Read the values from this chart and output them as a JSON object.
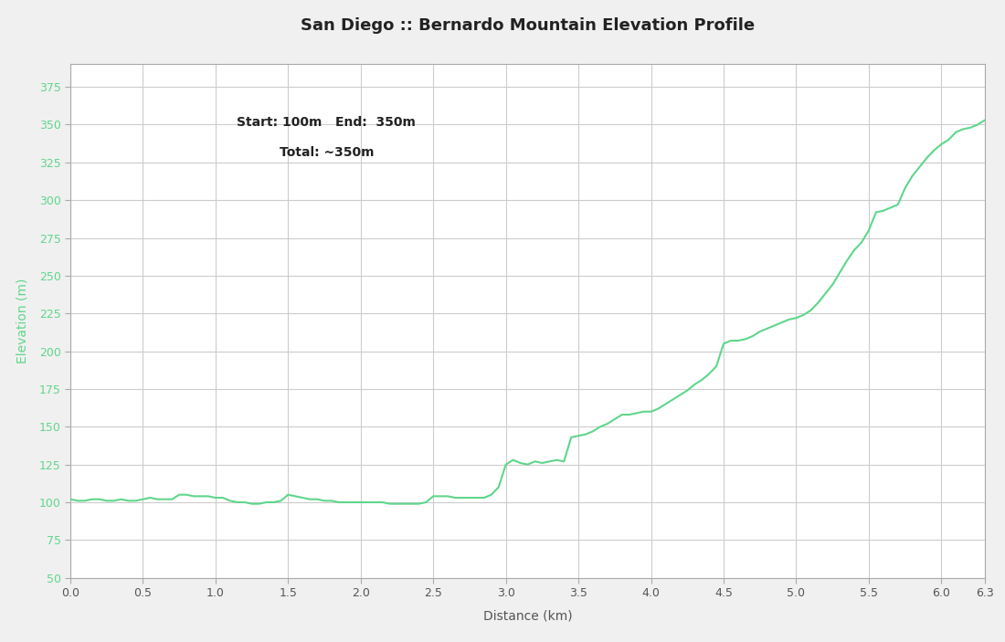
{
  "title": "San Diego :: Bernardo Mountain Elevation Profile",
  "subtitle_line1": "Start: 100m   End:  350m",
  "subtitle_line2": "Total: ~350m",
  "xlabel": "Distance (km)",
  "ylabel": "Elevation (m)",
  "xlim": [
    0.0,
    6.3
  ],
  "ylim": [
    50,
    390
  ],
  "xticks": [
    0.0,
    0.5,
    1.0,
    1.5,
    2.0,
    2.5,
    3.0,
    3.5,
    4.0,
    4.5,
    5.0,
    5.5,
    6.0,
    6.3
  ],
  "yticks": [
    50,
    75,
    100,
    125,
    150,
    175,
    200,
    225,
    250,
    275,
    300,
    325,
    350,
    375
  ],
  "line_color": "#5fd68c",
  "bg_color": "#f0f0f0",
  "plot_bg_color": "#ffffff",
  "grid_color": "#cccccc",
  "title_color": "#222222",
  "ylabel_color": "#5fd68c",
  "xlabel_color": "#555555",
  "tick_color": "#5fd68c",
  "title_fontsize": 13,
  "subtitle_fontsize": 10,
  "axis_label_fontsize": 10,
  "tick_fontsize": 9,
  "line_width": 1.5,
  "elevation_profile": [
    [
      0.0,
      102
    ],
    [
      0.05,
      101
    ],
    [
      0.1,
      101
    ],
    [
      0.15,
      102
    ],
    [
      0.2,
      102
    ],
    [
      0.25,
      101
    ],
    [
      0.3,
      101
    ],
    [
      0.35,
      102
    ],
    [
      0.4,
      101
    ],
    [
      0.45,
      101
    ],
    [
      0.5,
      102
    ],
    [
      0.55,
      103
    ],
    [
      0.6,
      102
    ],
    [
      0.65,
      102
    ],
    [
      0.7,
      102
    ],
    [
      0.75,
      105
    ],
    [
      0.8,
      105
    ],
    [
      0.85,
      104
    ],
    [
      0.9,
      104
    ],
    [
      0.95,
      104
    ],
    [
      1.0,
      103
    ],
    [
      1.05,
      103
    ],
    [
      1.1,
      101
    ],
    [
      1.15,
      100
    ],
    [
      1.2,
      100
    ],
    [
      1.25,
      99
    ],
    [
      1.3,
      99
    ],
    [
      1.35,
      100
    ],
    [
      1.4,
      100
    ],
    [
      1.45,
      101
    ],
    [
      1.5,
      105
    ],
    [
      1.55,
      104
    ],
    [
      1.6,
      103
    ],
    [
      1.65,
      102
    ],
    [
      1.7,
      102
    ],
    [
      1.75,
      101
    ],
    [
      1.8,
      101
    ],
    [
      1.85,
      100
    ],
    [
      1.9,
      100
    ],
    [
      1.95,
      100
    ],
    [
      2.0,
      100
    ],
    [
      2.05,
      100
    ],
    [
      2.1,
      100
    ],
    [
      2.15,
      100
    ],
    [
      2.2,
      99
    ],
    [
      2.25,
      99
    ],
    [
      2.3,
      99
    ],
    [
      2.35,
      99
    ],
    [
      2.4,
      99
    ],
    [
      2.45,
      100
    ],
    [
      2.5,
      104
    ],
    [
      2.55,
      104
    ],
    [
      2.6,
      104
    ],
    [
      2.65,
      103
    ],
    [
      2.7,
      103
    ],
    [
      2.75,
      103
    ],
    [
      2.8,
      103
    ],
    [
      2.85,
      103
    ],
    [
      2.9,
      105
    ],
    [
      2.95,
      110
    ],
    [
      3.0,
      125
    ],
    [
      3.05,
      128
    ],
    [
      3.1,
      126
    ],
    [
      3.15,
      125
    ],
    [
      3.2,
      127
    ],
    [
      3.25,
      126
    ],
    [
      3.3,
      127
    ],
    [
      3.35,
      128
    ],
    [
      3.4,
      127
    ],
    [
      3.45,
      143
    ],
    [
      3.5,
      144
    ],
    [
      3.55,
      145
    ],
    [
      3.6,
      147
    ],
    [
      3.65,
      150
    ],
    [
      3.7,
      152
    ],
    [
      3.75,
      155
    ],
    [
      3.8,
      158
    ],
    [
      3.85,
      158
    ],
    [
      3.9,
      159
    ],
    [
      3.95,
      160
    ],
    [
      4.0,
      160
    ],
    [
      4.05,
      162
    ],
    [
      4.1,
      165
    ],
    [
      4.15,
      168
    ],
    [
      4.2,
      171
    ],
    [
      4.25,
      174
    ],
    [
      4.3,
      178
    ],
    [
      4.35,
      181
    ],
    [
      4.4,
      185
    ],
    [
      4.45,
      190
    ],
    [
      4.5,
      205
    ],
    [
      4.55,
      207
    ],
    [
      4.6,
      207
    ],
    [
      4.65,
      208
    ],
    [
      4.7,
      210
    ],
    [
      4.75,
      213
    ],
    [
      4.8,
      215
    ],
    [
      4.85,
      217
    ],
    [
      4.9,
      219
    ],
    [
      4.95,
      221
    ],
    [
      5.0,
      222
    ],
    [
      5.05,
      224
    ],
    [
      5.1,
      227
    ],
    [
      5.15,
      232
    ],
    [
      5.2,
      238
    ],
    [
      5.25,
      244
    ],
    [
      5.3,
      252
    ],
    [
      5.35,
      260
    ],
    [
      5.4,
      267
    ],
    [
      5.45,
      272
    ],
    [
      5.5,
      280
    ],
    [
      5.55,
      292
    ],
    [
      5.6,
      293
    ],
    [
      5.65,
      295
    ],
    [
      5.7,
      297
    ],
    [
      5.75,
      308
    ],
    [
      5.8,
      316
    ],
    [
      5.85,
      322
    ],
    [
      5.9,
      328
    ],
    [
      5.95,
      333
    ],
    [
      6.0,
      337
    ],
    [
      6.05,
      340
    ],
    [
      6.1,
      345
    ],
    [
      6.15,
      347
    ],
    [
      6.2,
      348
    ],
    [
      6.25,
      350
    ],
    [
      6.3,
      353
    ]
  ]
}
